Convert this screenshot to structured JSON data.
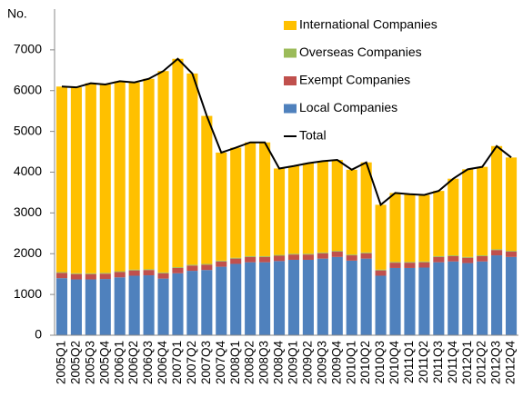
{
  "chart_data": {
    "type": "bar",
    "stacked": true,
    "y_label": "No.",
    "categories": [
      "2005Q1",
      "2005Q2",
      "2005Q3",
      "2005Q4",
      "2006Q1",
      "2006Q2",
      "2006Q3",
      "2006Q4",
      "2007Q1",
      "2007Q2",
      "2007Q3",
      "2007Q4",
      "2008Q1",
      "2008Q2",
      "2008Q3",
      "2008Q4",
      "2009Q1",
      "2009Q2",
      "2009Q3",
      "2009Q4",
      "2010Q1",
      "2010Q2",
      "2010Q3",
      "2010Q4",
      "2011Q1",
      "2011Q2",
      "2011Q3",
      "2011Q4",
      "2012Q1",
      "2012Q2",
      "2012Q3",
      "2012Q4"
    ],
    "series": [
      {
        "name": "Local Companies",
        "color": "#4f81bd",
        "values": [
          1400,
          1370,
          1370,
          1380,
          1420,
          1460,
          1470,
          1390,
          1520,
          1580,
          1600,
          1680,
          1750,
          1790,
          1790,
          1820,
          1850,
          1850,
          1880,
          1920,
          1830,
          1880,
          1460,
          1650,
          1650,
          1660,
          1790,
          1810,
          1770,
          1810,
          1960,
          1920
        ]
      },
      {
        "name": "Exempt Companies",
        "color": "#c0504d",
        "values": [
          130,
          130,
          130,
          130,
          130,
          130,
          130,
          130,
          130,
          130,
          130,
          130,
          130,
          130,
          130,
          130,
          130,
          130,
          130,
          130,
          130,
          130,
          130,
          130,
          130,
          130,
          130,
          130,
          130,
          130,
          130,
          130
        ]
      },
      {
        "name": "Overseas Companies",
        "color": "#9bbb59",
        "values": [
          20,
          20,
          20,
          20,
          20,
          20,
          20,
          20,
          20,
          20,
          20,
          20,
          20,
          20,
          20,
          20,
          20,
          20,
          20,
          20,
          20,
          20,
          20,
          20,
          20,
          20,
          20,
          20,
          20,
          20,
          20,
          20
        ]
      },
      {
        "name": "International Companies",
        "color": "#ffc000",
        "values": [
          4550,
          4560,
          4660,
          4620,
          4660,
          4590,
          4670,
          4940,
          5110,
          4690,
          3630,
          2650,
          2700,
          2790,
          2790,
          2120,
          2150,
          2220,
          2240,
          2230,
          2080,
          2210,
          1590,
          1690,
          1660,
          1630,
          1600,
          1880,
          2150,
          2170,
          2530,
          2290
        ]
      },
      {
        "name": "Total",
        "type": "line",
        "color": "#000000",
        "values": [
          6100,
          6080,
          6180,
          6150,
          6230,
          6200,
          6290,
          6480,
          6780,
          6420,
          5380,
          4480,
          4600,
          4730,
          4730,
          4090,
          4150,
          4220,
          4270,
          4300,
          4060,
          4240,
          3200,
          3490,
          3460,
          3440,
          3540,
          3840,
          4070,
          4130,
          4640,
          4360
        ]
      }
    ],
    "ylim": [
      0,
      8000
    ],
    "yticks": [
      0,
      1000,
      2000,
      3000,
      4000,
      5000,
      6000,
      7000
    ],
    "grid": false,
    "legend": "upper right"
  }
}
